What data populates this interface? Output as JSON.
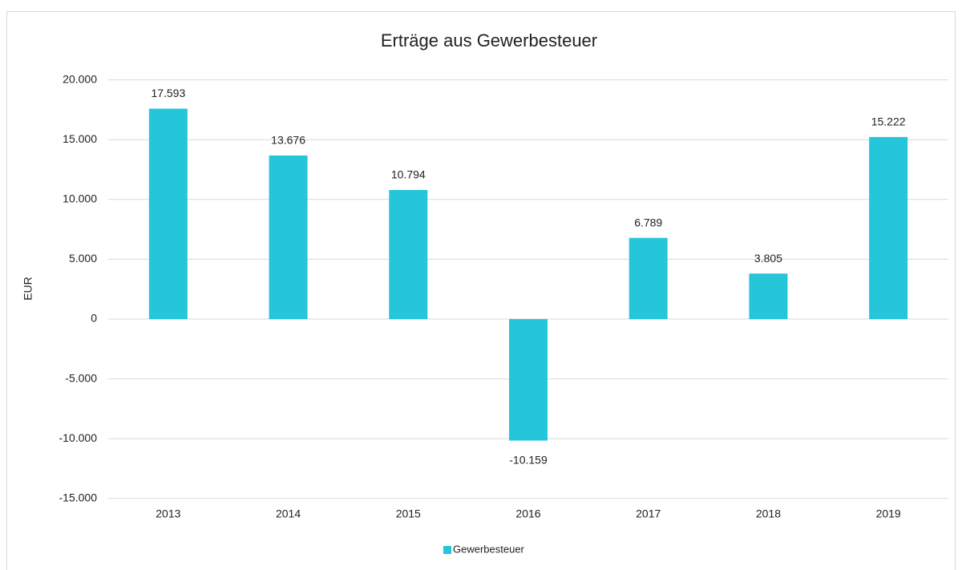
{
  "chart_data": {
    "type": "bar",
    "title": "Erträge aus Gewerbesteuer",
    "ylabel": "EUR",
    "categories": [
      "2013",
      "2014",
      "2015",
      "2016",
      "2017",
      "2018",
      "2019"
    ],
    "series": [
      {
        "name": "Gewerbesteuer",
        "color": "#26c6da",
        "values": [
          17593,
          13676,
          10794,
          -10159,
          6789,
          3805,
          15222
        ],
        "value_labels": [
          "17.593",
          "13.676",
          "10.794",
          "-10.159",
          "6.789",
          "3.805",
          "15.222"
        ]
      }
    ],
    "ylim": [
      -15000,
      20000
    ],
    "yticks": [
      {
        "value": -15000,
        "label": "-15.000"
      },
      {
        "value": -10000,
        "label": "-10.000"
      },
      {
        "value": -5000,
        "label": "-5.000"
      },
      0,
      {
        "value": 5000,
        "label": "5.000"
      },
      {
        "value": 10000,
        "label": "10.000"
      },
      {
        "value": 15000,
        "label": "15.000"
      },
      {
        "value": 20000,
        "label": "20.000"
      }
    ],
    "grid": true,
    "legend": "bottom"
  }
}
